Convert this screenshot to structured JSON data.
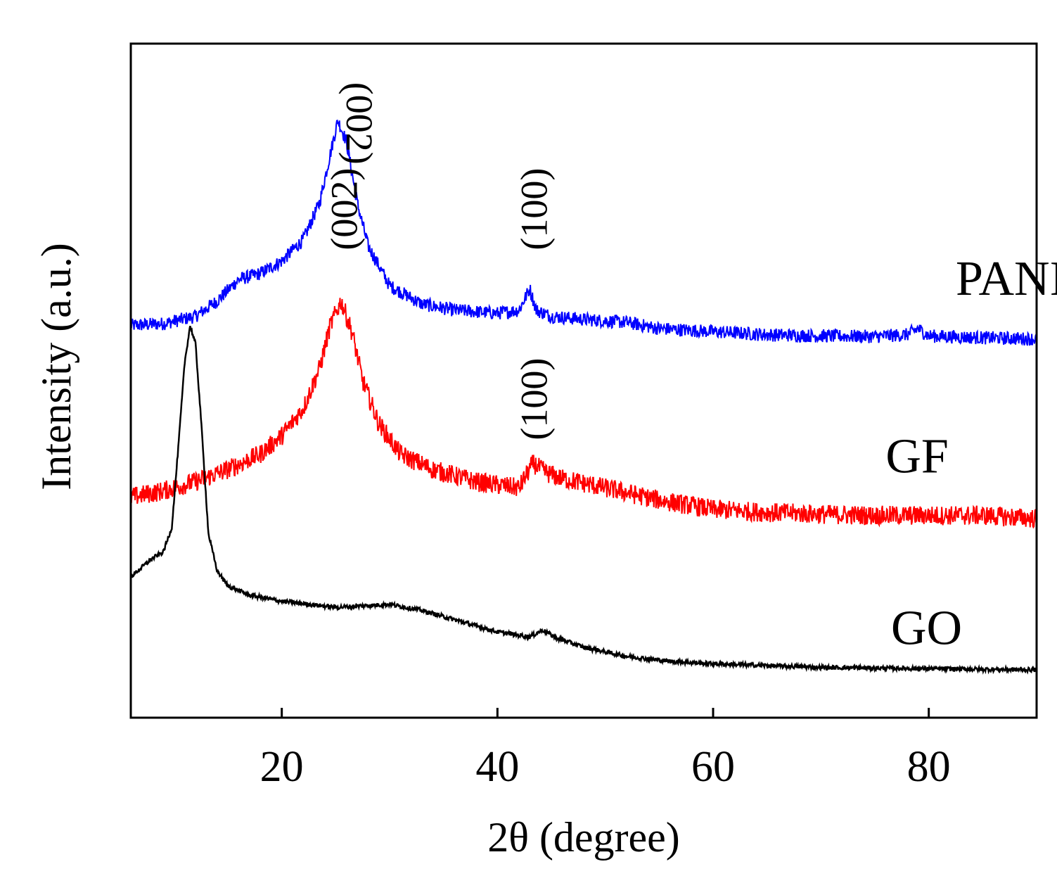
{
  "chart_data": {
    "type": "line",
    "title": "",
    "xlabel": "2θ (degree)",
    "ylabel": "Intensity (a.u.)",
    "xlim": [
      6,
      90
    ],
    "ylim": [
      0,
      110
    ],
    "x_ticks": [
      20,
      40,
      60,
      80
    ],
    "y_ticks": [],
    "grid": false,
    "legend": "none",
    "series": [
      {
        "name": "PANI/GF",
        "color": "#0000ff",
        "noise": 1.1,
        "points": [
          [
            6,
            64
          ],
          [
            9,
            64.3
          ],
          [
            12,
            65.5
          ],
          [
            14,
            68
          ],
          [
            16,
            71.5
          ],
          [
            18,
            72.5
          ],
          [
            20,
            74.5
          ],
          [
            22,
            78
          ],
          [
            23.5,
            84
          ],
          [
            24.5,
            92
          ],
          [
            25.2,
            97.5
          ],
          [
            26,
            94
          ],
          [
            27,
            84
          ],
          [
            28,
            77
          ],
          [
            30,
            70.5
          ],
          [
            33,
            67.5
          ],
          [
            36,
            66.5
          ],
          [
            40,
            66
          ],
          [
            42,
            66.5
          ],
          [
            43,
            70
          ],
          [
            43.6,
            66.5
          ],
          [
            45,
            65.5
          ],
          [
            48,
            65
          ],
          [
            52,
            64.5
          ],
          [
            55,
            63.5
          ],
          [
            60,
            63
          ],
          [
            65,
            62.5
          ],
          [
            70,
            62.3
          ],
          [
            75,
            62.2
          ],
          [
            78,
            62.5
          ],
          [
            79,
            63.5
          ],
          [
            80,
            62.3
          ],
          [
            85,
            62
          ],
          [
            90,
            61.8
          ]
        ]
      },
      {
        "name": "GF",
        "color": "#ff0000",
        "noise": 1.6,
        "points": [
          [
            6,
            36
          ],
          [
            9,
            37
          ],
          [
            12,
            38.5
          ],
          [
            15,
            40.5
          ],
          [
            18,
            43
          ],
          [
            20,
            46
          ],
          [
            22,
            50.5
          ],
          [
            23.5,
            57
          ],
          [
            24.5,
            64
          ],
          [
            25.5,
            68
          ],
          [
            26.5,
            63
          ],
          [
            27.5,
            55
          ],
          [
            29,
            48
          ],
          [
            31,
            43
          ],
          [
            34,
            40.5
          ],
          [
            38,
            38.5
          ],
          [
            42,
            37.5
          ],
          [
            43.3,
            41.5
          ],
          [
            44.5,
            40
          ],
          [
            46,
            39
          ],
          [
            50,
            37.5
          ],
          [
            55,
            35.5
          ],
          [
            60,
            34
          ],
          [
            65,
            33.5
          ],
          [
            70,
            33.2
          ],
          [
            75,
            33
          ],
          [
            80,
            33
          ],
          [
            85,
            33
          ],
          [
            90,
            32.5
          ]
        ]
      },
      {
        "name": "GO",
        "color": "#000000",
        "noise": 0.35,
        "points": [
          [
            6,
            23
          ],
          [
            7,
            24.5
          ],
          [
            8,
            26
          ],
          [
            9,
            27
          ],
          [
            9.8,
            31
          ],
          [
            10.4,
            44
          ],
          [
            11,
            58
          ],
          [
            11.5,
            64
          ],
          [
            12,
            61
          ],
          [
            12.5,
            49
          ],
          [
            13.2,
            30
          ],
          [
            14,
            24
          ],
          [
            15,
            21.5
          ],
          [
            17,
            20
          ],
          [
            20,
            19
          ],
          [
            25,
            18
          ],
          [
            28,
            18.3
          ],
          [
            30,
            18.5
          ],
          [
            33,
            17.5
          ],
          [
            36,
            16
          ],
          [
            40,
            14
          ],
          [
            43,
            13.2
          ],
          [
            44.2,
            14.3
          ],
          [
            45.5,
            13
          ],
          [
            48,
            11.5
          ],
          [
            52,
            10
          ],
          [
            56,
            9.2
          ],
          [
            60,
            8.8
          ],
          [
            65,
            8.5
          ],
          [
            70,
            8.2
          ],
          [
            80,
            8
          ],
          [
            90,
            7.8
          ]
        ]
      }
    ],
    "annotations": [
      {
        "text": "(002)",
        "x": 27.2,
        "y": 97,
        "rotate": 90
      },
      {
        "text": "(100)",
        "x": 43.4,
        "y": 83,
        "rotate": -90
      },
      {
        "text": "(002)",
        "x": 25.8,
        "y": 83,
        "rotate": -90
      },
      {
        "text": "(100)",
        "x": 43.4,
        "y": 52,
        "rotate": -90
      }
    ],
    "series_labels": [
      {
        "text": "PANI/GF",
        "x": 82.5,
        "y": 69
      },
      {
        "text": "GF",
        "x": 76,
        "y": 40
      },
      {
        "text": "GO",
        "x": 76.5,
        "y": 12
      }
    ]
  }
}
